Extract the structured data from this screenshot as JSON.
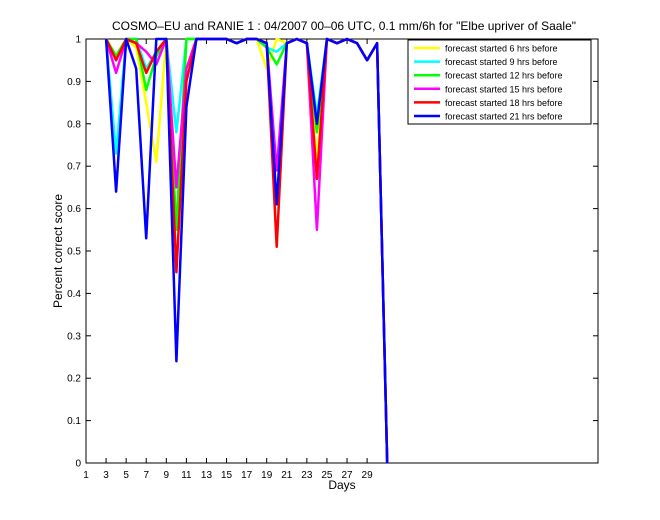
{
  "chart_data": {
    "type": "line",
    "title": "COSMO–EU and RANIE 1 : 04/2007 00–06 UTC, 0.1 mm/6h for \"Elbe upriver of Saale\"",
    "xlabel": "Days",
    "ylabel": "Percent correct score",
    "xlim": [
      1,
      52
    ],
    "ylim": [
      0,
      1
    ],
    "x_ticks": [
      1,
      3,
      5,
      7,
      9,
      11,
      13,
      15,
      17,
      19,
      21,
      23,
      25,
      27,
      29
    ],
    "y_ticks": [
      0,
      0.1,
      0.2,
      0.3,
      0.4,
      0.5,
      0.6,
      0.7,
      0.8,
      0.9,
      1
    ],
    "y_tick_labels": [
      "0",
      "0.1",
      "0.2",
      "0.3",
      "0.4",
      "0.5",
      "0.6",
      "0.7",
      "0.8",
      "0.9",
      "1"
    ],
    "grid": false,
    "legend_position": "top-right",
    "series": [
      {
        "name": "forecast started 6 hrs before",
        "color": "#ffff00",
        "x": [
          3,
          4,
          5,
          6,
          7,
          8,
          9,
          10,
          11,
          12,
          13,
          14,
          15,
          16,
          17,
          18,
          19,
          20,
          21,
          22,
          23,
          24,
          25,
          26,
          27,
          28,
          29,
          30,
          31
        ],
        "y": [
          1,
          0.96,
          1,
          0.98,
          0.85,
          0.71,
          1,
          0.55,
          1,
          1,
          1,
          1,
          1,
          0.99,
          1,
          1,
          0.93,
          1,
          0.99,
          1,
          0.99,
          0.71,
          1,
          0.99,
          1,
          0.99,
          0.95,
          0.99,
          0
        ]
      },
      {
        "name": "forecast started 9 hrs before",
        "color": "#00ffff",
        "x": [
          3,
          4,
          5,
          6,
          7,
          8,
          9,
          10,
          11,
          12,
          13,
          14,
          15,
          16,
          17,
          18,
          19,
          20,
          21,
          22,
          23,
          24,
          25,
          26,
          27,
          28,
          29,
          30,
          31
        ],
        "y": [
          1,
          0.73,
          1,
          1,
          0.93,
          0.97,
          1,
          0.78,
          1,
          1,
          1,
          1,
          1,
          0.99,
          1,
          1,
          0.98,
          0.97,
          0.99,
          1,
          0.99,
          0.82,
          1,
          0.99,
          1,
          0.99,
          0.95,
          0.99,
          0
        ]
      },
      {
        "name": "forecast started 12 hrs before",
        "color": "#00ff00",
        "x": [
          3,
          4,
          5,
          6,
          7,
          8,
          9,
          10,
          11,
          12,
          13,
          14,
          15,
          16,
          17,
          18,
          19,
          20,
          21,
          22,
          23,
          24,
          25,
          26,
          27,
          28,
          29,
          30,
          31
        ],
        "y": [
          1,
          0.96,
          1,
          1,
          0.88,
          0.96,
          1,
          0.55,
          1,
          1,
          1,
          1,
          1,
          0.99,
          1,
          1,
          0.98,
          0.94,
          0.99,
          1,
          0.99,
          0.78,
          1,
          0.99,
          1,
          0.99,
          0.95,
          0.99,
          0
        ]
      },
      {
        "name": "forecast started 15 hrs before",
        "color": "#ff00ff",
        "x": [
          3,
          4,
          5,
          6,
          7,
          8,
          9,
          10,
          11,
          12,
          13,
          14,
          15,
          16,
          17,
          18,
          19,
          20,
          21,
          22,
          23,
          24,
          25,
          26,
          27,
          28,
          29,
          30,
          31
        ],
        "y": [
          1,
          0.92,
          1,
          0.99,
          0.97,
          0.94,
          1,
          0.65,
          0.93,
          1,
          1,
          1,
          1,
          0.99,
          1,
          1,
          0.99,
          0.69,
          0.99,
          1,
          0.99,
          0.55,
          1,
          0.99,
          1,
          0.99,
          0.95,
          0.99,
          0
        ]
      },
      {
        "name": "forecast started 18 hrs before",
        "color": "#ff0000",
        "x": [
          3,
          4,
          5,
          6,
          7,
          8,
          9,
          10,
          11,
          12,
          13,
          14,
          15,
          16,
          17,
          18,
          19,
          20,
          21,
          22,
          23,
          24,
          25,
          26,
          27,
          28,
          29,
          30,
          31
        ],
        "y": [
          1,
          0.95,
          1,
          0.99,
          0.92,
          0.97,
          1,
          0.45,
          0.9,
          1,
          1,
          1,
          1,
          0.99,
          1,
          1,
          0.99,
          0.51,
          0.99,
          1,
          0.99,
          0.67,
          1,
          0.99,
          1,
          0.99,
          0.95,
          0.99,
          0
        ]
      },
      {
        "name": "forecast started 21 hrs before",
        "color": "#0000ff",
        "x": [
          3,
          4,
          5,
          6,
          7,
          8,
          9,
          10,
          11,
          12,
          13,
          14,
          15,
          16,
          17,
          18,
          19,
          20,
          21,
          22,
          23,
          24,
          25,
          26,
          27,
          28,
          29,
          30,
          31
        ],
        "y": [
          1,
          0.64,
          1,
          0.93,
          0.53,
          1,
          1,
          0.24,
          0.84,
          1,
          1,
          1,
          1,
          0.99,
          1,
          1,
          0.99,
          0.61,
          0.99,
          1,
          0.99,
          0.8,
          1,
          0.99,
          1,
          0.99,
          0.95,
          0.99,
          0
        ]
      }
    ]
  }
}
